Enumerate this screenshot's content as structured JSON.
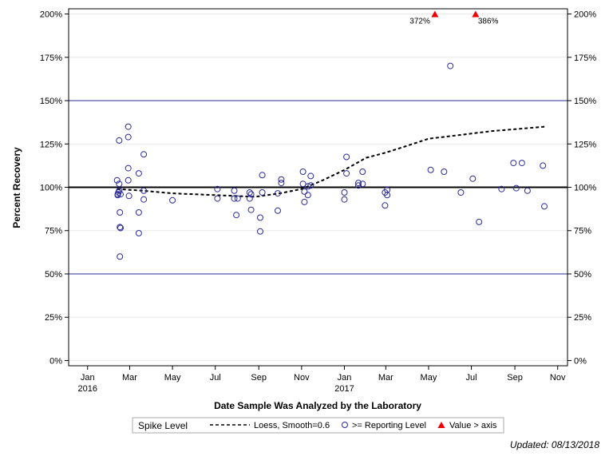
{
  "chart_data": {
    "type": "scatter",
    "title": "",
    "xlabel": "Date Sample Was Analyzed by the Laboratory",
    "ylabel": "Percent Recovery",
    "x_ticks": [
      {
        "date": "2016-01-01",
        "label": "Jan",
        "year": "2016"
      },
      {
        "date": "2016-03-01",
        "label": "Mar",
        "year": ""
      },
      {
        "date": "2016-05-01",
        "label": "May",
        "year": ""
      },
      {
        "date": "2016-07-01",
        "label": "Jul",
        "year": ""
      },
      {
        "date": "2016-09-01",
        "label": "Sep",
        "year": ""
      },
      {
        "date": "2016-11-01",
        "label": "Nov",
        "year": ""
      },
      {
        "date": "2017-01-01",
        "label": "Jan",
        "year": "2017"
      },
      {
        "date": "2017-03-01",
        "label": "Mar",
        "year": ""
      },
      {
        "date": "2017-05-01",
        "label": "May",
        "year": ""
      },
      {
        "date": "2017-07-01",
        "label": "Jul",
        "year": ""
      },
      {
        "date": "2017-09-01",
        "label": "Sep",
        "year": ""
      },
      {
        "date": "2017-11-01",
        "label": "Nov",
        "year": ""
      }
    ],
    "xlim": [
      "2015-12-05",
      "2017-11-15"
    ],
    "ylim": [
      -3,
      203
    ],
    "y_ticks": [
      0,
      25,
      50,
      75,
      100,
      125,
      150,
      175,
      200
    ],
    "y_tick_labels": [
      "0%",
      "25%",
      "50%",
      "75%",
      "100%",
      "125%",
      "150%",
      "175%",
      "200%"
    ],
    "reference_lines": [
      {
        "y": 100,
        "color": "#000000",
        "width": 2
      },
      {
        "y": 150,
        "color": "#2b2b9c",
        "width": 1
      },
      {
        "y": 50,
        "color": "#2b2b9c",
        "width": 1
      }
    ],
    "series": [
      {
        "name": "Loess, Smooth=0.6",
        "kind": "line",
        "style": "dashed",
        "color": "#000000",
        "points": [
          {
            "x": "2016-02-12",
            "y": 99
          },
          {
            "x": "2016-03-20",
            "y": 98
          },
          {
            "x": "2016-05-01",
            "y": 96.5
          },
          {
            "x": "2016-07-01",
            "y": 95.5
          },
          {
            "x": "2016-08-27",
            "y": 94.5
          },
          {
            "x": "2016-10-01",
            "y": 96.5
          },
          {
            "x": "2016-11-01",
            "y": 99
          },
          {
            "x": "2016-12-01",
            "y": 104
          },
          {
            "x": "2017-01-01",
            "y": 110
          },
          {
            "x": "2017-02-01",
            "y": 117
          },
          {
            "x": "2017-03-01",
            "y": 120
          },
          {
            "x": "2017-04-01",
            "y": 124
          },
          {
            "x": "2017-05-01",
            "y": 128
          },
          {
            "x": "2017-06-01",
            "y": 129.5
          },
          {
            "x": "2017-07-01",
            "y": 131
          },
          {
            "x": "2017-08-01",
            "y": 132.5
          },
          {
            "x": "2017-09-01",
            "y": 133.5
          },
          {
            "x": "2017-10-14",
            "y": 135
          }
        ]
      },
      {
        "name": ">= Reporting Level",
        "kind": "scatter",
        "marker": "circle",
        "color": "#2b2b9c",
        "points": [
          {
            "x": "2016-02-12",
            "y": 104
          },
          {
            "x": "2016-02-13",
            "y": 96
          },
          {
            "x": "2016-02-13",
            "y": 95.5
          },
          {
            "x": "2016-02-14",
            "y": 97
          },
          {
            "x": "2016-02-15",
            "y": 127
          },
          {
            "x": "2016-02-15",
            "y": 102
          },
          {
            "x": "2016-02-15",
            "y": 98
          },
          {
            "x": "2016-02-16",
            "y": 85.5
          },
          {
            "x": "2016-02-16",
            "y": 60
          },
          {
            "x": "2016-02-16",
            "y": 77
          },
          {
            "x": "2016-02-17",
            "y": 76.5
          },
          {
            "x": "2016-02-17",
            "y": 96
          },
          {
            "x": "2016-02-28",
            "y": 135
          },
          {
            "x": "2016-02-28",
            "y": 129
          },
          {
            "x": "2016-02-28",
            "y": 111
          },
          {
            "x": "2016-02-28",
            "y": 104
          },
          {
            "x": "2016-02-29",
            "y": 95
          },
          {
            "x": "2016-03-14",
            "y": 108
          },
          {
            "x": "2016-03-14",
            "y": 85.5
          },
          {
            "x": "2016-03-14",
            "y": 73.5
          },
          {
            "x": "2016-03-21",
            "y": 119
          },
          {
            "x": "2016-03-21",
            "y": 98
          },
          {
            "x": "2016-03-21",
            "y": 93
          },
          {
            "x": "2016-05-01",
            "y": 92.5
          },
          {
            "x": "2016-07-04",
            "y": 99
          },
          {
            "x": "2016-07-04",
            "y": 93.5
          },
          {
            "x": "2016-07-28",
            "y": 98
          },
          {
            "x": "2016-07-28",
            "y": 93.5
          },
          {
            "x": "2016-07-31",
            "y": 84
          },
          {
            "x": "2016-08-02",
            "y": 93.5
          },
          {
            "x": "2016-08-19",
            "y": 97
          },
          {
            "x": "2016-08-19",
            "y": 93.5
          },
          {
            "x": "2016-08-21",
            "y": 96
          },
          {
            "x": "2016-08-21",
            "y": 87
          },
          {
            "x": "2016-09-03",
            "y": 82.5
          },
          {
            "x": "2016-09-03",
            "y": 74.5
          },
          {
            "x": "2016-09-06",
            "y": 107
          },
          {
            "x": "2016-09-06",
            "y": 97
          },
          {
            "x": "2016-09-28",
            "y": 96.5
          },
          {
            "x": "2016-09-28",
            "y": 86.5
          },
          {
            "x": "2016-10-03",
            "y": 104.5
          },
          {
            "x": "2016-10-03",
            "y": 102.5
          },
          {
            "x": "2016-11-03",
            "y": 109
          },
          {
            "x": "2016-11-03",
            "y": 102
          },
          {
            "x": "2016-11-05",
            "y": 97.5
          },
          {
            "x": "2016-11-05",
            "y": 91.5
          },
          {
            "x": "2016-11-10",
            "y": 100.5
          },
          {
            "x": "2016-11-10",
            "y": 95.5
          },
          {
            "x": "2016-11-14",
            "y": 106.5
          },
          {
            "x": "2016-11-14",
            "y": 101
          },
          {
            "x": "2017-01-01",
            "y": 97
          },
          {
            "x": "2017-01-01",
            "y": 93
          },
          {
            "x": "2017-01-04",
            "y": 117.5
          },
          {
            "x": "2017-01-04",
            "y": 108
          },
          {
            "x": "2017-01-21",
            "y": 102.5
          },
          {
            "x": "2017-01-21",
            "y": 101
          },
          {
            "x": "2017-01-27",
            "y": 109
          },
          {
            "x": "2017-01-27",
            "y": 102
          },
          {
            "x": "2017-02-28",
            "y": 97
          },
          {
            "x": "2017-02-28",
            "y": 89.5
          },
          {
            "x": "2017-03-03",
            "y": 98.5
          },
          {
            "x": "2017-03-03",
            "y": 95.5
          },
          {
            "x": "2017-05-04",
            "y": 110
          },
          {
            "x": "2017-05-23",
            "y": 109
          },
          {
            "x": "2017-06-01",
            "y": 170
          },
          {
            "x": "2017-06-16",
            "y": 97
          },
          {
            "x": "2017-07-03",
            "y": 105
          },
          {
            "x": "2017-07-12",
            "y": 80
          },
          {
            "x": "2017-08-13",
            "y": 99
          },
          {
            "x": "2017-08-30",
            "y": 114
          },
          {
            "x": "2017-09-03",
            "y": 99.5
          },
          {
            "x": "2017-09-11",
            "y": 114
          },
          {
            "x": "2017-09-19",
            "y": 98
          },
          {
            "x": "2017-10-11",
            "y": 112.5
          },
          {
            "x": "2017-10-13",
            "y": 89
          }
        ]
      },
      {
        "name": "Value > axis",
        "kind": "marker",
        "marker": "triangle",
        "color": "#ee0000",
        "points": [
          {
            "x": "2017-05-10",
            "y": 200,
            "label": "372%",
            "label_side": "left"
          },
          {
            "x": "2017-07-07",
            "y": 200,
            "label": "386%",
            "label_side": "right"
          }
        ]
      }
    ],
    "legend": {
      "placement": "bottom",
      "title": "Spike Level",
      "entries": [
        {
          "label": "Loess, Smooth=0.6",
          "symbol": "dashed-line"
        },
        {
          "label": ">= Reporting Level",
          "symbol": "open-circle"
        },
        {
          "label": "Value > axis",
          "symbol": "red-triangle"
        }
      ]
    },
    "footnote": "Updated: 08/13/2018",
    "colors": {
      "reference": "#2b2b9c",
      "marker": "#2b2b9c",
      "exceed": "#ee0000",
      "grid": "#e8e8e8"
    }
  }
}
